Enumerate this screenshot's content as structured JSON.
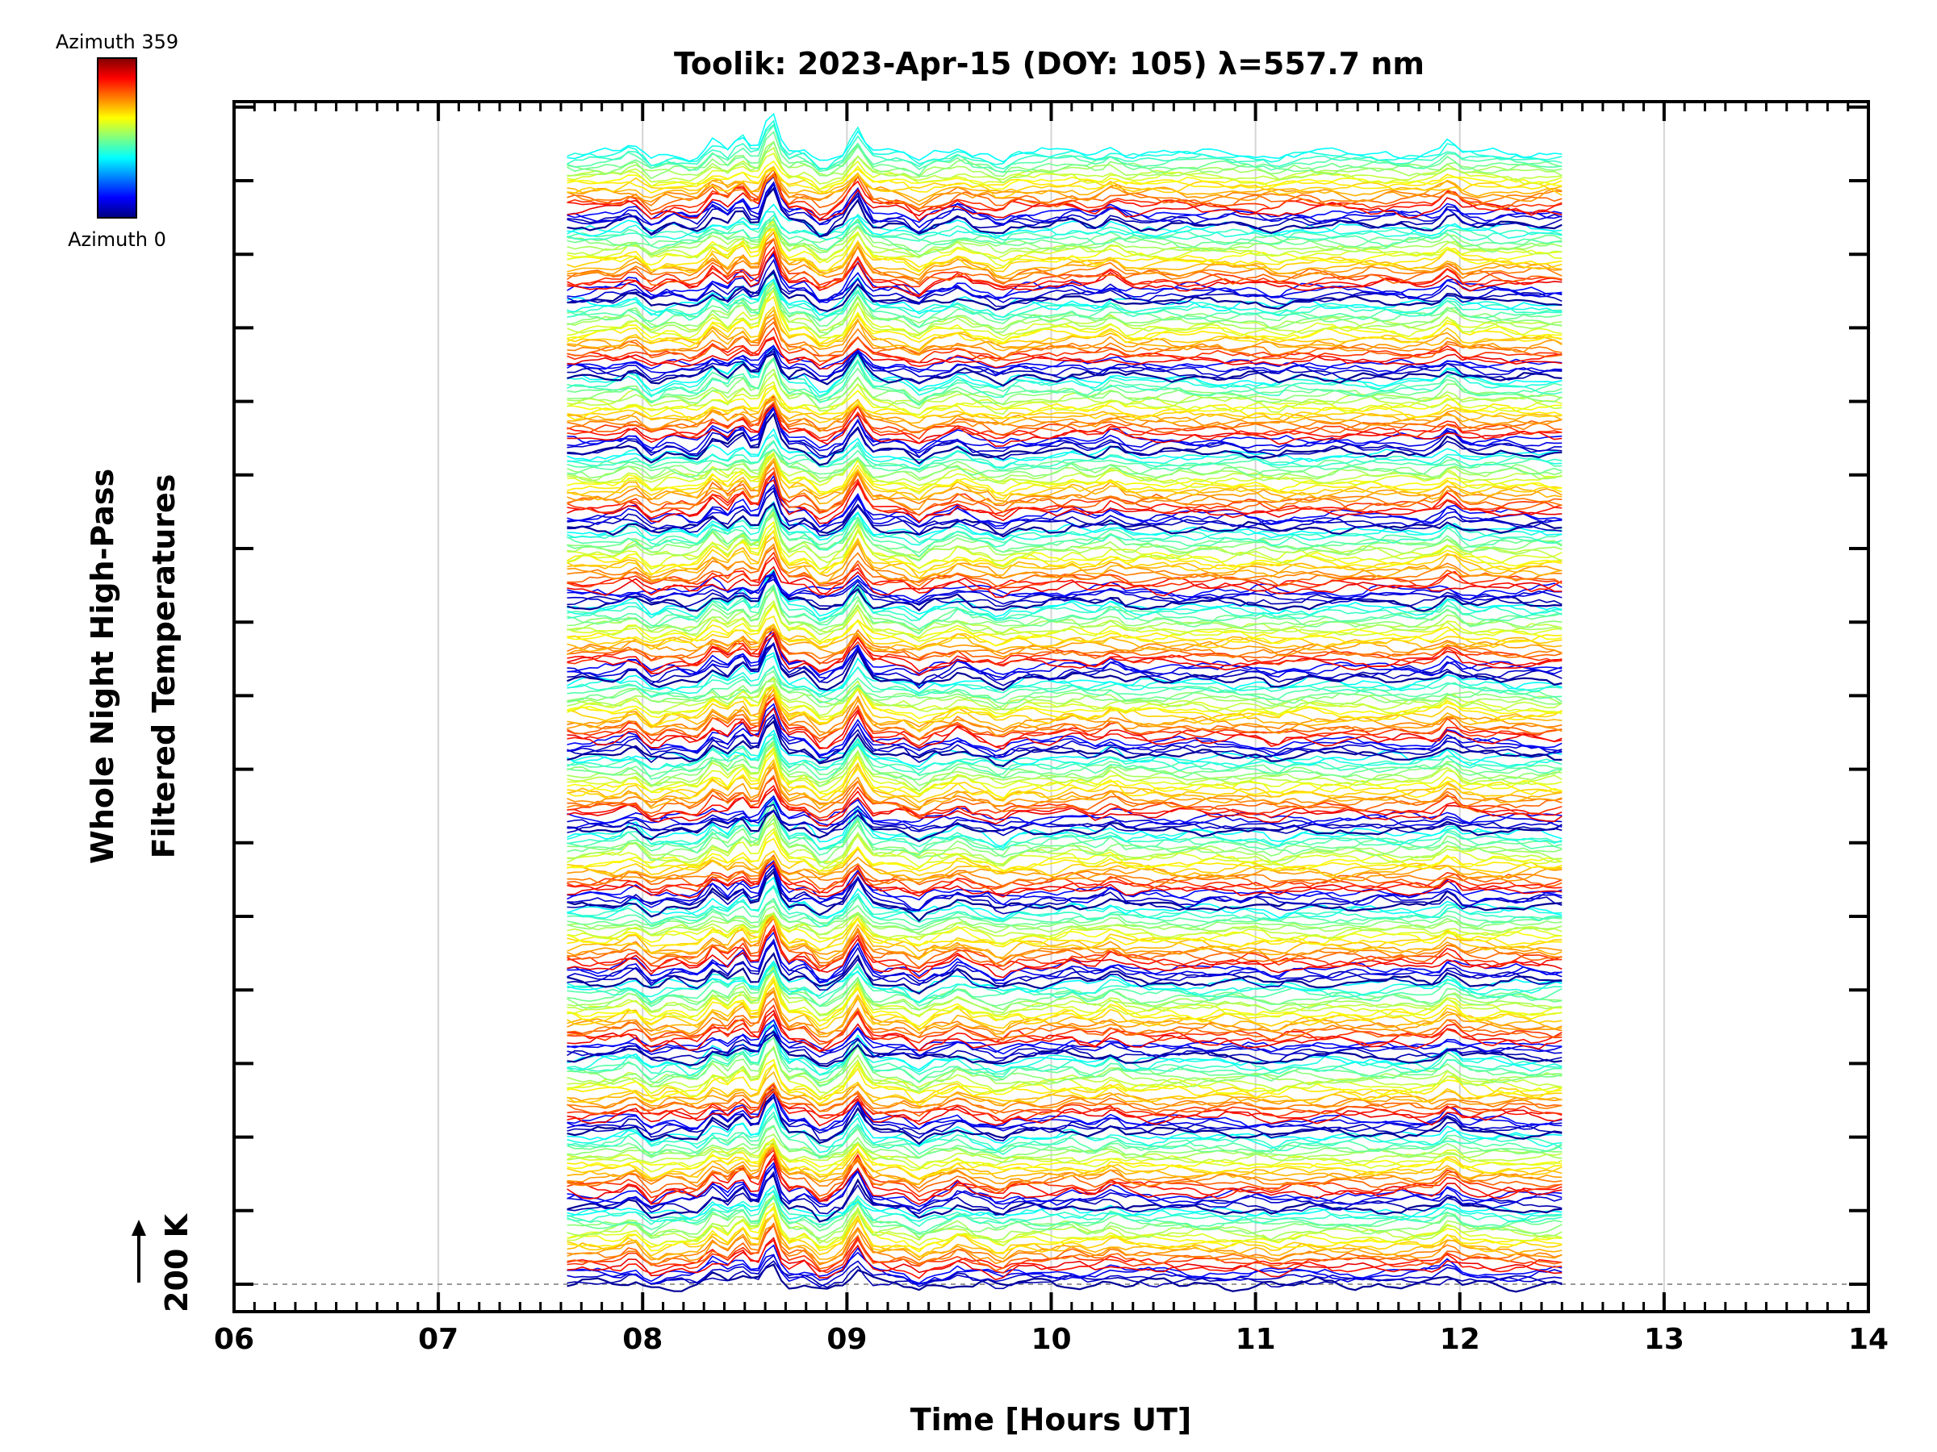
{
  "chart_data": {
    "type": "line",
    "title": "Toolik: 2023-Apr-15 (DOY: 105) λ=557.7 nm",
    "xlabel": "Time [Hours UT]",
    "ylabel_line1": "Whole Night High-Pass",
    "ylabel_line2": "Filtered Temperatures",
    "scale_label": "200 K",
    "xlim": [
      6,
      14
    ],
    "x_ticks": [
      "06",
      "07",
      "08",
      "09",
      "10",
      "11",
      "12",
      "13",
      "14"
    ],
    "data_time_range": [
      7.63,
      12.5
    ],
    "colorbar": {
      "top_label": "Azimuth 359",
      "bottom_label": "Azimuth 0",
      "colormap": "jet"
    },
    "stack": {
      "groups": 15,
      "traces_per_group": 24
    },
    "common_features_hours": [
      {
        "t": 7.95,
        "dy": -8
      },
      {
        "t": 8.05,
        "dy": 8
      },
      {
        "t": 8.25,
        "dy": 4
      },
      {
        "t": 8.35,
        "dy": -14
      },
      {
        "t": 8.48,
        "dy": -18
      },
      {
        "t": 8.63,
        "dy": -40
      },
      {
        "t": 8.78,
        "dy": -6
      },
      {
        "t": 8.88,
        "dy": 10
      },
      {
        "t": 9.05,
        "dy": -28
      },
      {
        "t": 9.35,
        "dy": 10
      },
      {
        "t": 9.55,
        "dy": -8
      },
      {
        "t": 9.75,
        "dy": 8
      },
      {
        "t": 10.1,
        "dy": -4
      },
      {
        "t": 10.3,
        "dy": -8
      },
      {
        "t": 11.1,
        "dy": 4
      },
      {
        "t": 11.95,
        "dy": -12
      }
    ]
  }
}
